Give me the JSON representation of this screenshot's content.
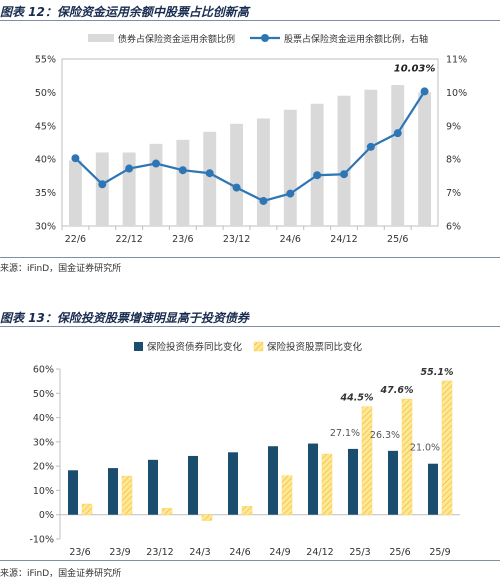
{
  "figure12": {
    "title": "图表 12：保险资金运用余额中股票占比创新高",
    "source": "来源：iFinD，国金证券研究所"
  },
  "figure13": {
    "title": "图表 13：保险投资股票增速明显高于投资债券",
    "source": "来源：iFinD，国金证券研究所"
  },
  "colors": {
    "bar_grey": "#d9d9d9",
    "line_blue": "#2e75b6",
    "navy": "#1b4d6e",
    "gold": "#ffd966",
    "title": "#1a2d50"
  },
  "chart_data": [
    {
      "type": "bar",
      "title": "保险资金运用余额中股票占比创新高",
      "categories": [
        "22/6",
        "",
        "22/12",
        "",
        "23/6",
        "",
        "23/12",
        "",
        "24/6",
        "",
        "24/12",
        "",
        "25/6",
        ""
      ],
      "x_tick_labels": [
        "22/6",
        "22/12",
        "23/6",
        "23/12",
        "24/6",
        "24/12",
        "25/6"
      ],
      "ylim": [
        30,
        55
      ],
      "y_ticks": [
        "30%",
        "35%",
        "40%",
        "45%",
        "50%",
        "55%"
      ],
      "y2lim": [
        6,
        11
      ],
      "y2_ticks": [
        "6%",
        "7%",
        "8%",
        "9%",
        "10%",
        "11%"
      ],
      "legend_position": "top",
      "series": [
        {
          "name": "债券占保险资金运用余额比例",
          "axis": "left",
          "values": [
            39.8,
            41.0,
            41.0,
            42.3,
            42.9,
            44.1,
            45.3,
            46.1,
            47.4,
            48.3,
            49.5,
            50.4,
            51.1,
            50.0
          ]
        },
        {
          "name": "股票占保险资金运用余额比例，右轴",
          "type": "line",
          "axis": "right",
          "values": [
            8.03,
            7.25,
            7.72,
            7.87,
            7.67,
            7.58,
            7.15,
            6.75,
            6.97,
            7.52,
            7.55,
            8.37,
            8.78,
            10.03
          ],
          "annotations": [
            {
              "index": 13,
              "text": "10.03%"
            }
          ]
        }
      ]
    },
    {
      "type": "bar",
      "title": "保险投资股票增速明显高于投资债券",
      "categories": [
        "23/6",
        "23/9",
        "23/12",
        "24/3",
        "24/6",
        "24/9",
        "24/12",
        "25/3",
        "25/6",
        "25/9"
      ],
      "ylim": [
        -10,
        60
      ],
      "y_ticks": [
        "-10%",
        "0%",
        "10%",
        "20%",
        "30%",
        "40%",
        "50%",
        "60%"
      ],
      "legend_position": "top",
      "series": [
        {
          "name": "保险投资债券同比变化",
          "values": [
            18.3,
            19.2,
            22.6,
            24.2,
            25.7,
            28.2,
            29.3,
            27.1,
            26.3,
            21.0
          ],
          "data_labels": {
            "7": "27.1%",
            "8": "26.3%",
            "9": "21.0%"
          }
        },
        {
          "name": "保险投资股票同比变化",
          "values": [
            4.4,
            15.9,
            2.7,
            -2.4,
            3.5,
            16.1,
            25.0,
            44.5,
            47.6,
            55.1
          ],
          "data_labels": {
            "7": "44.5%",
            "8": "47.6%",
            "9": "55.1%"
          }
        }
      ]
    }
  ]
}
